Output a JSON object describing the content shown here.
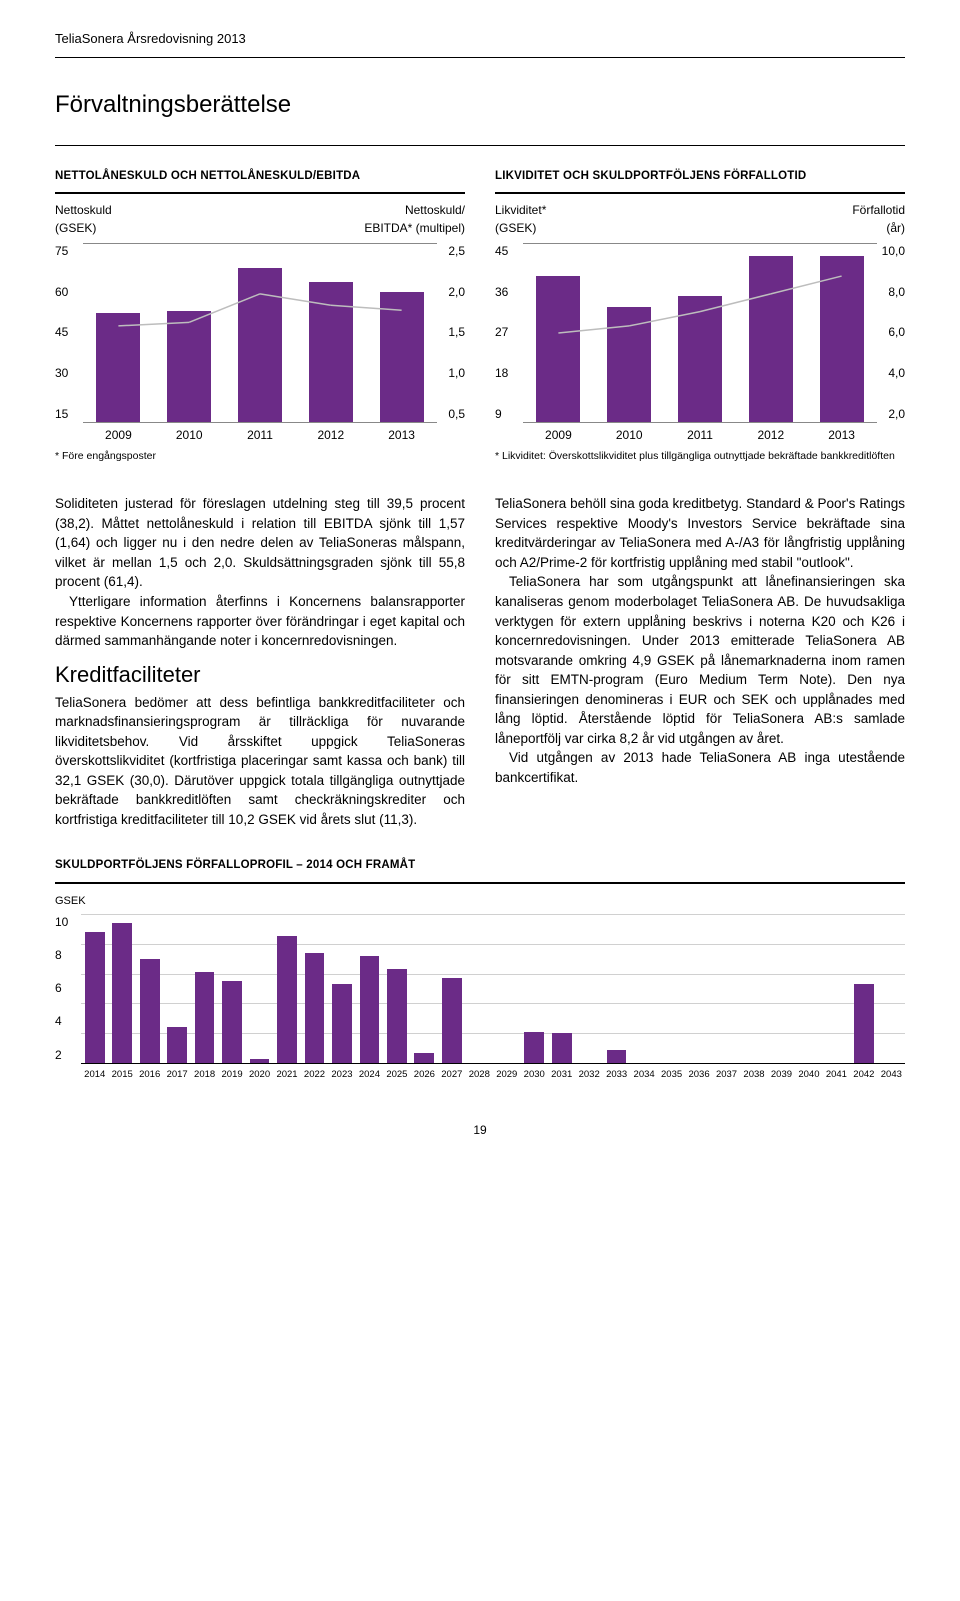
{
  "doc_header": "TeliaSonera Årsredovisning 2013",
  "page_title": "Förvaltningsberättelse",
  "page_number": "19",
  "chart1": {
    "title": "NETTOLÅNESKULD OCH NETTOLÅNESKULD/EBITDA",
    "left_label_a": "Nettoskuld",
    "left_label_b": "(GSEK)",
    "right_label_a": "Nettoskuld/",
    "right_label_b": "EBITDA* (multipel)",
    "left_ticks": [
      "75",
      "60",
      "45",
      "30",
      "15"
    ],
    "right_ticks": [
      "2,5",
      "2,0",
      "1,5",
      "1,0",
      "0,5"
    ],
    "x_labels": [
      "2009",
      "2010",
      "2011",
      "2012",
      "2013"
    ],
    "bar_values": [
      46,
      47,
      65,
      59,
      55
    ],
    "bar_max": 75,
    "line_values": [
      1.35,
      1.4,
      1.8,
      1.64,
      1.57
    ],
    "line_max": 2.5,
    "bar_color": "#6b2b87",
    "line_color": "#bdbdbd",
    "footnote": "* Före engångsposter"
  },
  "chart2": {
    "title": "LIKVIDITET OCH SKULDPORTFÖLJENS FÖRFALLOTID",
    "left_label_a": "Likviditet*",
    "left_label_b": "(GSEK)",
    "right_label_a": "Förfallotid",
    "right_label_b": "(år)",
    "left_ticks": [
      "45",
      "36",
      "27",
      "18",
      "9"
    ],
    "right_ticks": [
      "10,0",
      "8,0",
      "6,0",
      "4,0",
      "2,0"
    ],
    "x_labels": [
      "2009",
      "2010",
      "2011",
      "2012",
      "2013"
    ],
    "bar_values": [
      37,
      29,
      32,
      42,
      42
    ],
    "bar_max": 45,
    "line_values": [
      5.0,
      5.4,
      6.2,
      7.2,
      8.2
    ],
    "line_max": 10.0,
    "bar_color": "#6b2b87",
    "line_color": "#bdbdbd",
    "footnote": "* Likviditet: Överskottslikviditet plus tillgängliga outnyttjade bekräftade bankkreditlöften"
  },
  "body_left": {
    "p1": "Soliditeten justerad för föreslagen utdelning steg till 39,5 procent (38,2). Måttet nettolåneskuld i relation till EBITDA sjönk till 1,57 (1,64) och ligger nu i den nedre delen av TeliaSoneras målspann, vilket är mellan 1,5 och 2,0. Skuldsättningsgraden sjönk till 55,8 procent (61,4).",
    "p2": "Ytterligare information återfinns i Koncernens balansrapporter respektive Koncernens rapporter över förändringar i eget kapital och därmed sammanhängande noter i koncernredovisningen.",
    "subhead": "Kreditfaciliteter",
    "p3": "TeliaSonera bedömer att dess befintliga bankkreditfaciliteter och marknadsfinansieringsprogram är tillräckliga för nuvarande likviditetsbehov. Vid årsskiftet uppgick TeliaSoneras överskottslikviditet (kortfristiga placeringar samt kassa och bank) till 32,1 GSEK (30,0). Därutöver uppgick totala tillgängliga outnyttjade bekräftade bankkreditlöften samt checkräkningskrediter och kortfristiga kreditfaciliteter till 10,2 GSEK vid årets slut (11,3)."
  },
  "body_right": {
    "p1": "TeliaSonera behöll sina goda kreditbetyg. Standard & Poor's Ratings Services respektive Moody's Investors Service bekräftade sina kreditvärderingar av TeliaSonera med A-/A3 för långfristig upplåning och A2/Prime-2 för kortfristig upplåning med stabil \"outlook\".",
    "p2": "TeliaSonera har som utgångspunkt att lånefinansieringen ska kanaliseras genom moderbolaget TeliaSonera AB. De huvudsakliga verktygen för extern upplåning beskrivs i noterna K20 och K26 i koncernredovisningen. Under 2013 emitterade TeliaSonera AB motsvarande omkring 4,9 GSEK på lånemarknaderna inom ramen för sitt EMTN-program (Euro Medium Term Note). Den nya finansieringen denomineras i EUR och SEK och upplånades med lång löptid. Återstående löptid för TeliaSonera AB:s samlade låneportfölj var cirka 8,2 år vid utgången av året.",
    "p3": "Vid utgången av 2013 hade TeliaSonera AB inga utestående bankcertifikat."
  },
  "profile": {
    "title": "SKULDPORTFÖLJENS FÖRFALLOPROFIL – 2014 OCH FRAMÅT",
    "y_label": "GSEK",
    "y_ticks": [
      "10",
      "8",
      "6",
      "4",
      "2"
    ],
    "y_max": 10,
    "bar_color": "#6b2b87",
    "grid_color": "#d0d0d0",
    "years": [
      "2014",
      "2015",
      "2016",
      "2017",
      "2018",
      "2019",
      "2020",
      "2021",
      "2022",
      "2023",
      "2024",
      "2025",
      "2026",
      "2027",
      "2028",
      "2029",
      "2030",
      "2031",
      "2032",
      "2033",
      "2034",
      "2035",
      "2036",
      "2037",
      "2038",
      "2039",
      "2040",
      "2041",
      "2042",
      "2043"
    ],
    "values": [
      8.8,
      9.4,
      7.0,
      2.4,
      6.1,
      5.5,
      0.3,
      8.5,
      7.4,
      5.3,
      7.2,
      6.3,
      0.7,
      5.7,
      0,
      0,
      2.1,
      2.0,
      0,
      0.9,
      0,
      0,
      0,
      0,
      0,
      0,
      0,
      0,
      5.3,
      0
    ]
  }
}
